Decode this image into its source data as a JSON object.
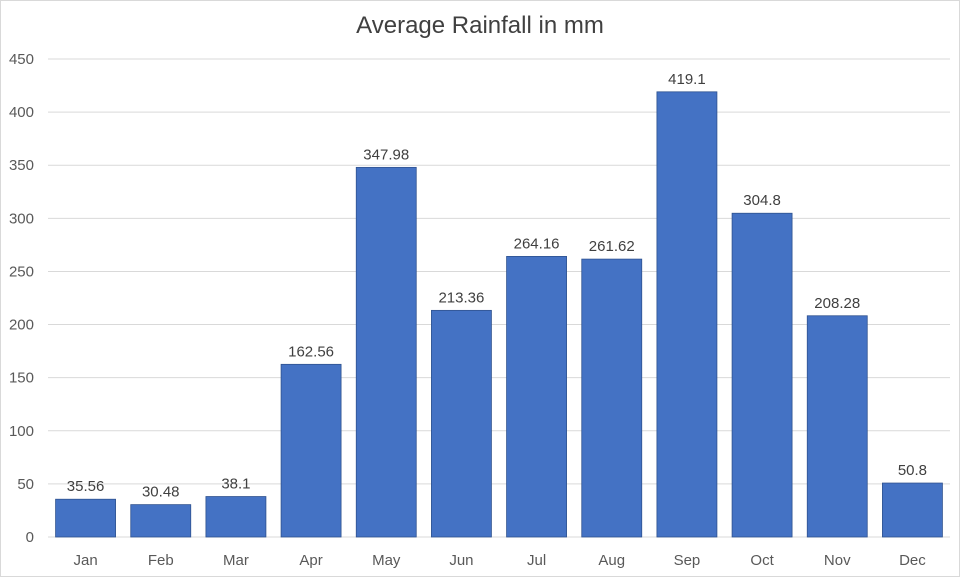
{
  "chart_data": {
    "type": "bar",
    "title": "Average Rainfall in mm",
    "xlabel": "",
    "ylabel": "",
    "categories": [
      "Jan",
      "Feb",
      "Mar",
      "Apr",
      "May",
      "Jun",
      "Jul",
      "Aug",
      "Sep",
      "Oct",
      "Nov",
      "Dec"
    ],
    "values": [
      35.56,
      30.48,
      38.1,
      162.56,
      347.98,
      213.36,
      264.16,
      261.62,
      419.1,
      304.8,
      208.28,
      50.8
    ],
    "ylim": [
      0,
      450
    ],
    "yticks": [
      0,
      50,
      100,
      150,
      200,
      250,
      300,
      350,
      400,
      450
    ],
    "grid": true,
    "legend": "none",
    "bar_color": "#4472c4",
    "data_labels": true
  }
}
